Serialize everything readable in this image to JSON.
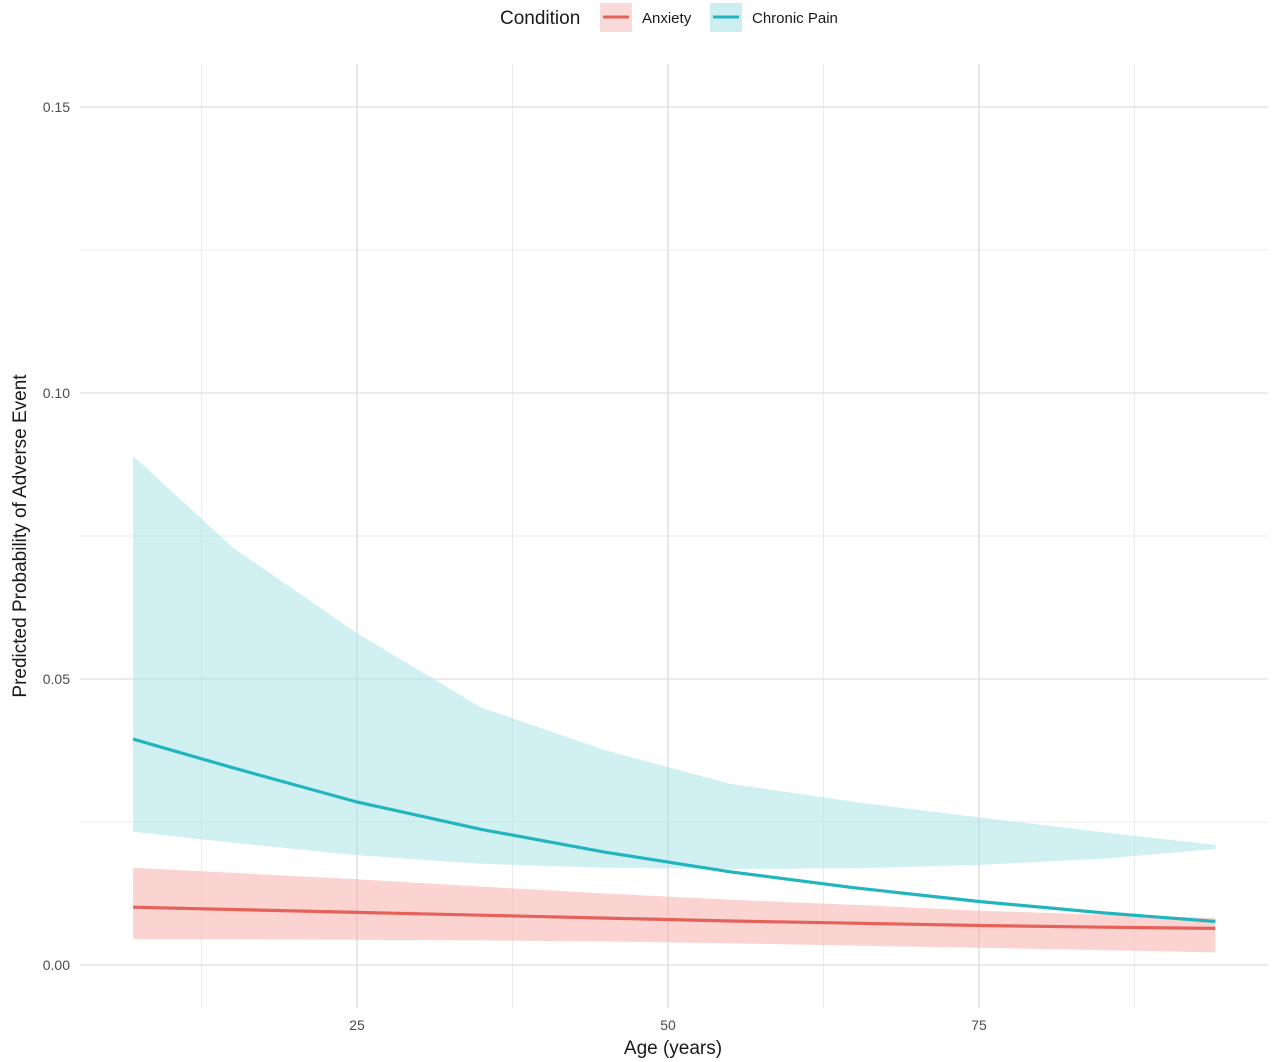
{
  "chart_data": {
    "type": "line",
    "title": "",
    "xlabel": "Age (years)",
    "ylabel": "Predicted Probability of Adverse Event",
    "xlim": [
      5,
      95
    ],
    "ylim": [
      -0.003,
      0.16
    ],
    "x_ticks": [
      25,
      50,
      75
    ],
    "x_tick_labels": [
      "25",
      "50",
      "75"
    ],
    "y_ticks": [
      0,
      0.05,
      0.1,
      0.15
    ],
    "y_tick_labels": [
      "0.00",
      "0.05",
      "0.10",
      "0.15"
    ],
    "grid": true,
    "legend": {
      "title": "Condition",
      "placement": "top"
    },
    "series": [
      {
        "name": "Anxiety",
        "color": "#e5625a",
        "band_color": "#f8a8a3",
        "x": [
          7,
          15,
          25,
          35,
          45,
          55,
          65,
          75,
          85,
          94
        ],
        "y": [
          0.0101,
          0.0097,
          0.0092,
          0.0087,
          0.0082,
          0.0077,
          0.0073,
          0.0069,
          0.0066,
          0.0064
        ],
        "lower": [
          0.0045,
          0.0045,
          0.0044,
          0.0043,
          0.0041,
          0.0038,
          0.0034,
          0.003,
          0.0026,
          0.0022
        ],
        "upper": [
          0.017,
          0.0161,
          0.015,
          0.0137,
          0.0125,
          0.0114,
          0.0105,
          0.0095,
          0.0088,
          0.0082
        ]
      },
      {
        "name": "Chronic Pain",
        "color": "#22b5be",
        "band_color": "#a2e1e5",
        "x": [
          7,
          15,
          25,
          35,
          45,
          55,
          65,
          75,
          85,
          94
        ],
        "y": [
          0.0395,
          0.0345,
          0.0285,
          0.0237,
          0.0197,
          0.0163,
          0.0135,
          0.0111,
          0.0091,
          0.0076
        ],
        "lower": [
          0.0233,
          0.0214,
          0.0192,
          0.0177,
          0.017,
          0.0168,
          0.0169,
          0.0175,
          0.0186,
          0.0203
        ],
        "upper": [
          0.089,
          0.073,
          0.058,
          0.045,
          0.0375,
          0.0317,
          0.0285,
          0.0258,
          0.0232,
          0.021
        ]
      }
    ]
  }
}
